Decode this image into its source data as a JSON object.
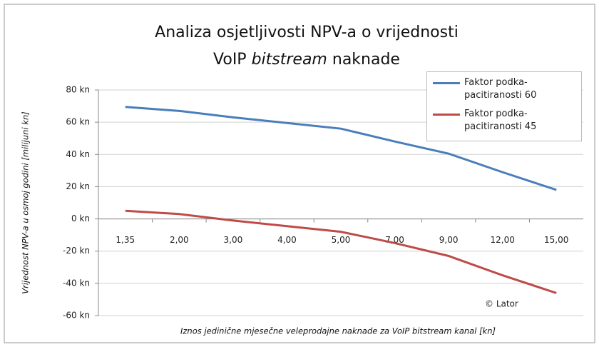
{
  "chart_data": {
    "type": "line",
    "title": [
      "Analiza osjetljivosti NPV-a o vrijednosti",
      [
        "VoIP",
        "bitstream",
        "naknade"
      ]
    ],
    "xlabel": "Iznos jedinične mjesečne veleprodajne naknade za VoIP bitstream kanal [kn]",
    "ylabel": "Vrijednost NPV-a u osmoj godini [milijuni kn]",
    "annotation": "© Lator",
    "categories": [
      "1,35",
      "2,00",
      "3,00",
      "4,00",
      "5,00",
      "7,00",
      "9,00",
      "12,00",
      "15,00"
    ],
    "series": [
      {
        "name": "Faktor podka-pacitiranosti 60",
        "color": "#4a7ebb",
        "values": [
          69.5,
          67,
          63,
          59.5,
          56,
          48,
          40.5,
          29,
          18
        ]
      },
      {
        "name": "Faktor podka-pacitiranosti 45",
        "color": "#be4b48",
        "values": [
          5,
          3,
          -1,
          -4.5,
          -8,
          -15,
          -23,
          -35,
          -46
        ]
      }
    ],
    "ylim": [
      -60,
      80
    ],
    "yticks": [
      {
        "value": -60,
        "label": "-60 kn"
      },
      {
        "value": -40,
        "label": "-40 kn"
      },
      {
        "value": -20,
        "label": "-20 kn"
      },
      {
        "value": 0,
        "label": "0 kn"
      },
      {
        "value": 20,
        "label": "20 kn"
      },
      {
        "value": 40,
        "label": "40 kn"
      },
      {
        "value": 60,
        "label": "60 kn"
      },
      {
        "value": 80,
        "label": "80 kn"
      }
    ],
    "grid": true
  }
}
